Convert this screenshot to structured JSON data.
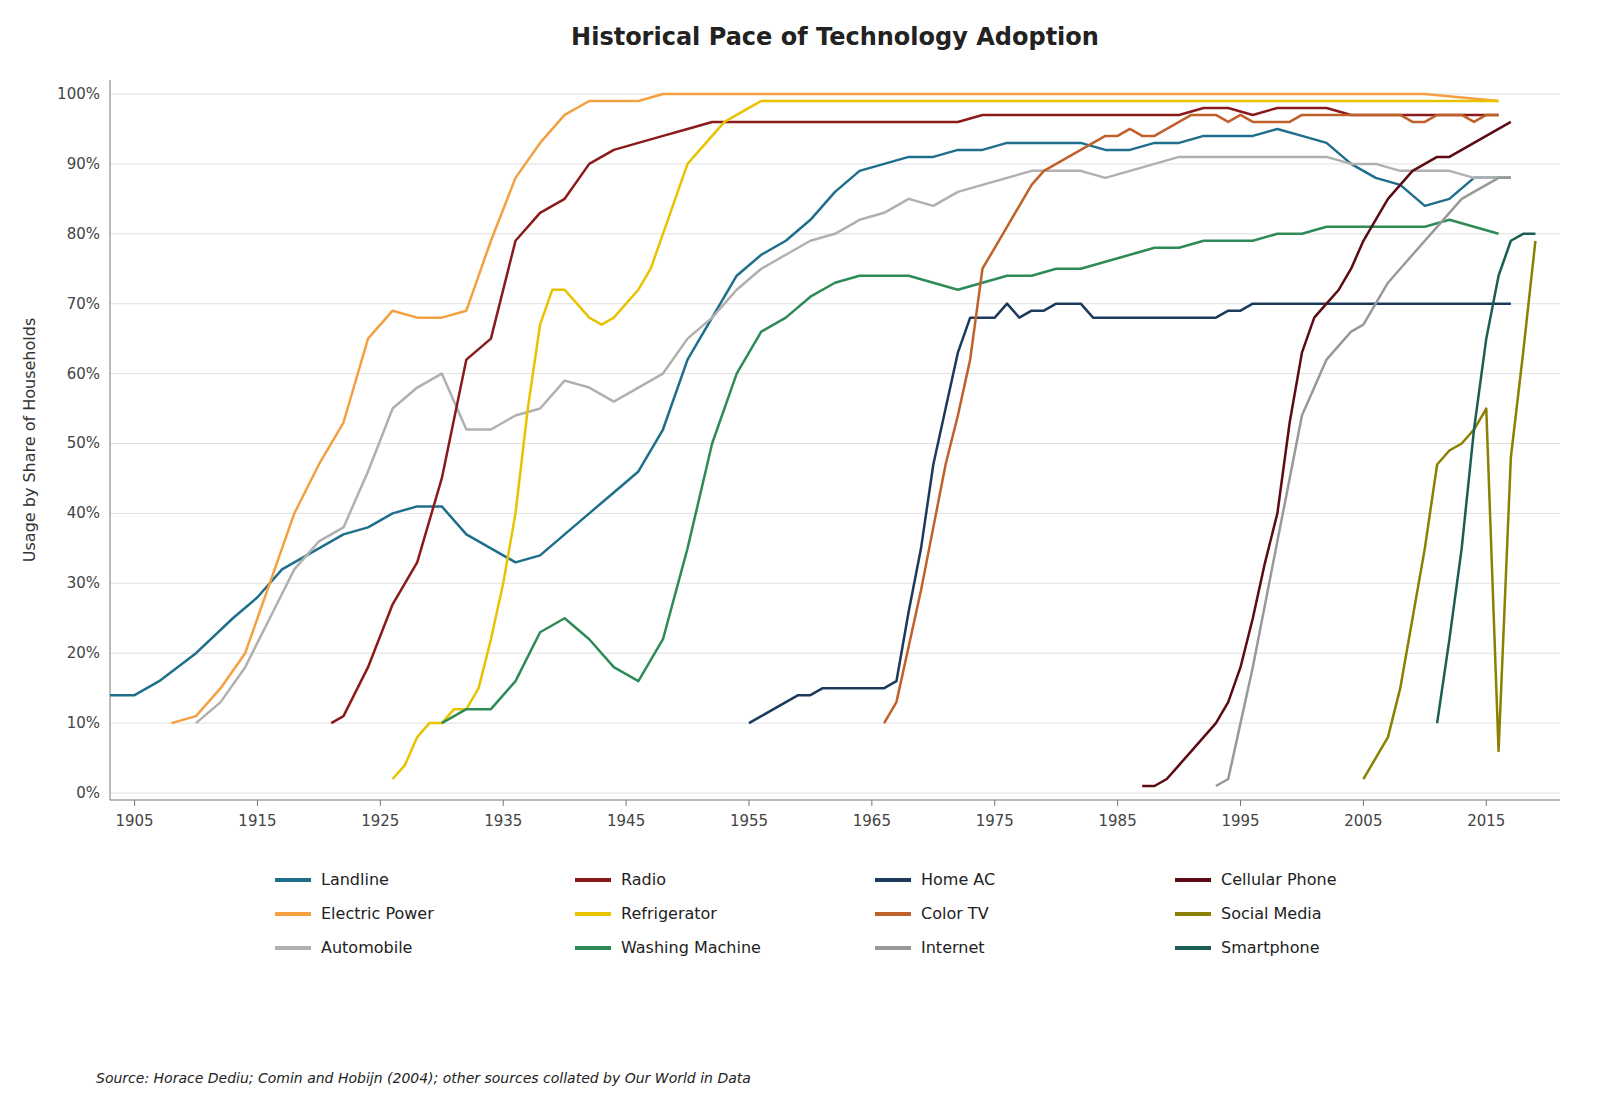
{
  "chart_data": {
    "type": "line",
    "title": "Historical Pace of Technology Adoption",
    "y_label": "Usage by Share of Households",
    "annotations": [
      "Source: Horace Dediu; Comin and Hobijn (2004); other sources collated by Our World in Data"
    ],
    "xlim": [
      1903,
      2021
    ],
    "ylim": [
      -1,
      102
    ],
    "xticks": [
      1905,
      1915,
      1925,
      1935,
      1945,
      1955,
      1965,
      1975,
      1985,
      1995,
      2005,
      2015
    ],
    "yticks": [
      {
        "value": 0,
        "label": "0%"
      },
      {
        "value": 10,
        "label": "10%"
      },
      {
        "value": 20,
        "label": "20%"
      },
      {
        "value": 30,
        "label": "30%"
      },
      {
        "value": 40,
        "label": "40%"
      },
      {
        "value": 50,
        "label": "50%"
      },
      {
        "value": 60,
        "label": "60%"
      },
      {
        "value": 70,
        "label": "70%"
      },
      {
        "value": 80,
        "label": "80%"
      },
      {
        "value": 90,
        "label": "90%"
      },
      {
        "value": 100,
        "label": "100%"
      }
    ],
    "grid": true,
    "legend": "bottom",
    "series": [
      {
        "name": "Landline",
        "color": "#1F6E8C",
        "x": [
          1903,
          1905,
          1907,
          1910,
          1913,
          1915,
          1917,
          1920,
          1922,
          1924,
          1926,
          1928,
          1930,
          1932,
          1934,
          1936,
          1938,
          1940,
          1942,
          1944,
          1946,
          1948,
          1950,
          1952,
          1954,
          1956,
          1958,
          1960,
          1962,
          1964,
          1966,
          1968,
          1970,
          1972,
          1974,
          1976,
          1978,
          1980,
          1982,
          1984,
          1986,
          1988,
          1990,
          1992,
          1994,
          1996,
          1998,
          2000,
          2002,
          2004,
          2006,
          2008,
          2010,
          2012,
          2014,
          2016,
          2017
        ],
        "values": [
          14,
          14,
          16,
          20,
          25,
          28,
          32,
          35,
          37,
          38,
          40,
          41,
          41,
          37,
          35,
          33,
          34,
          37,
          40,
          43,
          46,
          52,
          62,
          68,
          74,
          77,
          79,
          82,
          86,
          89,
          90,
          91,
          91,
          92,
          92,
          93,
          93,
          93,
          93,
          92,
          92,
          93,
          93,
          94,
          94,
          94,
          95,
          94,
          93,
          90,
          88,
          87,
          84,
          85,
          88,
          88,
          88
        ]
      },
      {
        "name": "Electric Power",
        "color": "#F4A040",
        "x": [
          1908,
          1910,
          1912,
          1914,
          1916,
          1918,
          1920,
          1922,
          1924,
          1926,
          1928,
          1930,
          1932,
          1934,
          1936,
          1938,
          1940,
          1942,
          1944,
          1946,
          1948,
          1950,
          1952,
          1954,
          1956,
          1958,
          1960,
          1965,
          1970,
          1975,
          1980,
          1985,
          1990,
          1995,
          2000,
          2005,
          2010,
          2016
        ],
        "values": [
          10,
          11,
          15,
          20,
          30,
          40,
          47,
          53,
          65,
          69,
          68,
          68,
          69,
          79,
          88,
          93,
          97,
          99,
          99,
          99,
          100,
          100,
          100,
          100,
          100,
          100,
          100,
          100,
          100,
          100,
          100,
          100,
          100,
          100,
          100,
          100,
          100,
          99
        ]
      },
      {
        "name": "Automobile",
        "color": "#B0B0B0",
        "x": [
          1910,
          1912,
          1914,
          1916,
          1918,
          1920,
          1922,
          1924,
          1926,
          1928,
          1930,
          1932,
          1934,
          1936,
          1938,
          1940,
          1942,
          1944,
          1946,
          1948,
          1950,
          1952,
          1954,
          1956,
          1958,
          1960,
          1962,
          1964,
          1966,
          1968,
          1970,
          1972,
          1974,
          1976,
          1978,
          1980,
          1982,
          1984,
          1986,
          1988,
          1990,
          1992,
          1994,
          1996,
          1998,
          2000,
          2002,
          2004,
          2006,
          2008,
          2010,
          2012,
          2014,
          2016,
          2017
        ],
        "values": [
          10,
          13,
          18,
          25,
          32,
          36,
          38,
          46,
          55,
          58,
          60,
          52,
          52,
          54,
          55,
          59,
          58,
          56,
          58,
          60,
          65,
          68,
          72,
          75,
          77,
          79,
          80,
          82,
          83,
          85,
          84,
          86,
          87,
          88,
          89,
          89,
          89,
          88,
          89,
          90,
          91,
          91,
          91,
          91,
          91,
          91,
          91,
          90,
          90,
          89,
          89,
          89,
          88,
          88,
          88
        ]
      },
      {
        "name": "Radio",
        "color": "#8B1A1A",
        "x": [
          1921,
          1922,
          1924,
          1926,
          1928,
          1930,
          1932,
          1934,
          1936,
          1938,
          1940,
          1942,
          1944,
          1946,
          1948,
          1950,
          1952,
          1954,
          1956,
          1958,
          1960,
          1962,
          1964,
          1966,
          1968,
          1970,
          1972,
          1974,
          1976,
          1978,
          1980,
          1982,
          1984,
          1986,
          1988,
          1990,
          1992,
          1994,
          1996,
          1998,
          2000,
          2002,
          2004,
          2006,
          2008,
          2010,
          2012,
          2014,
          2016
        ],
        "values": [
          10,
          11,
          18,
          27,
          33,
          45,
          62,
          65,
          79,
          83,
          85,
          90,
          92,
          93,
          94,
          95,
          96,
          96,
          96,
          96,
          96,
          96,
          96,
          96,
          96,
          96,
          96,
          97,
          97,
          97,
          97,
          97,
          97,
          97,
          97,
          97,
          98,
          98,
          97,
          98,
          98,
          98,
          97,
          97,
          97,
          97,
          97,
          97,
          97
        ]
      },
      {
        "name": "Refrigerator",
        "color": "#E8C300",
        "x": [
          1926,
          1927,
          1928,
          1929,
          1930,
          1931,
          1932,
          1933,
          1934,
          1935,
          1936,
          1937,
          1938,
          1939,
          1940,
          1941,
          1942,
          1943,
          1944,
          1945,
          1946,
          1947,
          1948,
          1949,
          1950,
          1951,
          1952,
          1953,
          1954,
          1955,
          1956,
          1957,
          1958,
          1959,
          1960,
          1965,
          1970,
          1975,
          1980,
          1985,
          1990,
          1995,
          2000,
          2005,
          2010,
          2016
        ],
        "values": [
          2,
          4,
          8,
          10,
          10,
          12,
          12,
          15,
          22,
          30,
          40,
          55,
          67,
          72,
          72,
          70,
          68,
          67,
          68,
          70,
          72,
          75,
          80,
          85,
          90,
          92,
          94,
          96,
          97,
          98,
          99,
          99,
          99,
          99,
          99,
          99,
          99,
          99,
          99,
          99,
          99,
          99,
          99,
          99,
          99,
          99
        ]
      },
      {
        "name": "Washing Machine",
        "color": "#2E8B57",
        "x": [
          1930,
          1932,
          1934,
          1936,
          1938,
          1940,
          1942,
          1944,
          1946,
          1948,
          1950,
          1952,
          1954,
          1956,
          1958,
          1960,
          1962,
          1964,
          1966,
          1968,
          1970,
          1972,
          1974,
          1976,
          1978,
          1980,
          1982,
          1984,
          1986,
          1988,
          1990,
          1992,
          1994,
          1996,
          1998,
          2000,
          2002,
          2004,
          2006,
          2008,
          2010,
          2012,
          2014,
          2016
        ],
        "values": [
          10,
          12,
          12,
          16,
          23,
          25,
          22,
          18,
          16,
          22,
          35,
          50,
          60,
          66,
          68,
          71,
          73,
          74,
          74,
          74,
          73,
          72,
          73,
          74,
          74,
          75,
          75,
          76,
          77,
          78,
          78,
          79,
          79,
          79,
          80,
          80,
          81,
          81,
          81,
          81,
          81,
          82,
          81,
          80
        ]
      },
      {
        "name": "Home AC",
        "color": "#1B3A5C",
        "x": [
          1955,
          1956,
          1957,
          1958,
          1959,
          1960,
          1961,
          1962,
          1963,
          1964,
          1965,
          1966,
          1967,
          1968,
          1969,
          1970,
          1971,
          1972,
          1973,
          1974,
          1975,
          1976,
          1977,
          1978,
          1979,
          1980,
          1981,
          1982,
          1983,
          1984,
          1985,
          1986,
          1987,
          1988,
          1989,
          1990,
          1991,
          1992,
          1993,
          1994,
          1995,
          1996,
          1997,
          1998,
          1999,
          2000,
          2001,
          2002,
          2003,
          2004,
          2005,
          2006,
          2007,
          2008,
          2009,
          2010,
          2011,
          2012,
          2013,
          2014,
          2015,
          2016,
          2017
        ],
        "values": [
          10,
          11,
          12,
          13,
          14,
          14,
          15,
          15,
          15,
          15,
          15,
          15,
          16,
          26,
          35,
          47,
          55,
          63,
          68,
          68,
          68,
          70,
          68,
          69,
          69,
          70,
          70,
          70,
          68,
          68,
          68,
          68,
          68,
          68,
          68,
          68,
          68,
          68,
          68,
          69,
          69,
          70,
          70,
          70,
          70,
          70,
          70,
          70,
          70,
          70,
          70,
          70,
          70,
          70,
          70,
          70,
          70,
          70,
          70,
          70,
          70,
          70,
          70
        ]
      },
      {
        "name": "Color TV",
        "color": "#C0602A",
        "x": [
          1966,
          1967,
          1968,
          1969,
          1970,
          1971,
          1972,
          1973,
          1974,
          1975,
          1976,
          1977,
          1978,
          1979,
          1980,
          1981,
          1982,
          1983,
          1984,
          1985,
          1986,
          1987,
          1988,
          1989,
          1990,
          1991,
          1992,
          1993,
          1994,
          1995,
          1996,
          1997,
          1998,
          1999,
          2000,
          2001,
          2002,
          2003,
          2004,
          2005,
          2006,
          2007,
          2008,
          2009,
          2010,
          2011,
          2012,
          2013,
          2014,
          2015,
          2016
        ],
        "values": [
          10,
          13,
          21,
          29,
          38,
          47,
          54,
          62,
          75,
          78,
          81,
          84,
          87,
          89,
          90,
          91,
          92,
          93,
          94,
          94,
          95,
          94,
          94,
          95,
          96,
          97,
          97,
          97,
          96,
          97,
          96,
          96,
          96,
          96,
          97,
          97,
          97,
          97,
          97,
          97,
          97,
          97,
          97,
          96,
          96,
          97,
          97,
          97,
          96,
          97,
          97
        ]
      },
      {
        "name": "Internet",
        "color": "#999999",
        "x": [
          1993,
          1994,
          1995,
          1996,
          1997,
          1998,
          1999,
          2000,
          2001,
          2002,
          2003,
          2004,
          2005,
          2006,
          2007,
          2008,
          2009,
          2010,
          2011,
          2012,
          2013,
          2014,
          2015,
          2016,
          2017
        ],
        "values": [
          1,
          2,
          10,
          18,
          27,
          36,
          45,
          54,
          58,
          62,
          64,
          66,
          67,
          70,
          73,
          75,
          77,
          79,
          81,
          83,
          85,
          86,
          87,
          88,
          88
        ]
      },
      {
        "name": "Cellular Phone",
        "color": "#5C0A14",
        "x": [
          1987,
          1988,
          1989,
          1990,
          1991,
          1992,
          1993,
          1994,
          1995,
          1996,
          1997,
          1998,
          1999,
          2000,
          2001,
          2002,
          2003,
          2004,
          2005,
          2006,
          2007,
          2008,
          2009,
          2010,
          2011,
          2012,
          2013,
          2014,
          2015,
          2016,
          2017
        ],
        "values": [
          1,
          1,
          2,
          4,
          6,
          8,
          10,
          13,
          18,
          25,
          33,
          40,
          53,
          63,
          68,
          70,
          72,
          75,
          79,
          82,
          85,
          87,
          89,
          90,
          91,
          91,
          92,
          93,
          94,
          95,
          96
        ]
      },
      {
        "name": "Social Media",
        "color": "#8B8000",
        "x": [
          2005,
          2006,
          2007,
          2008,
          2009,
          2010,
          2011,
          2012,
          2013,
          2014,
          2015,
          2016,
          2017,
          2018,
          2019
        ],
        "values": [
          2,
          5,
          8,
          15,
          25,
          35,
          47,
          49,
          50,
          52,
          55,
          6,
          48,
          63,
          79
        ]
      },
      {
        "name": "Smartphone",
        "color": "#1C5E54",
        "x": [
          2011,
          2012,
          2013,
          2014,
          2015,
          2016,
          2017,
          2018,
          2019
        ],
        "values": [
          10,
          22,
          35,
          52,
          65,
          74,
          79,
          80,
          80
        ]
      }
    ]
  }
}
